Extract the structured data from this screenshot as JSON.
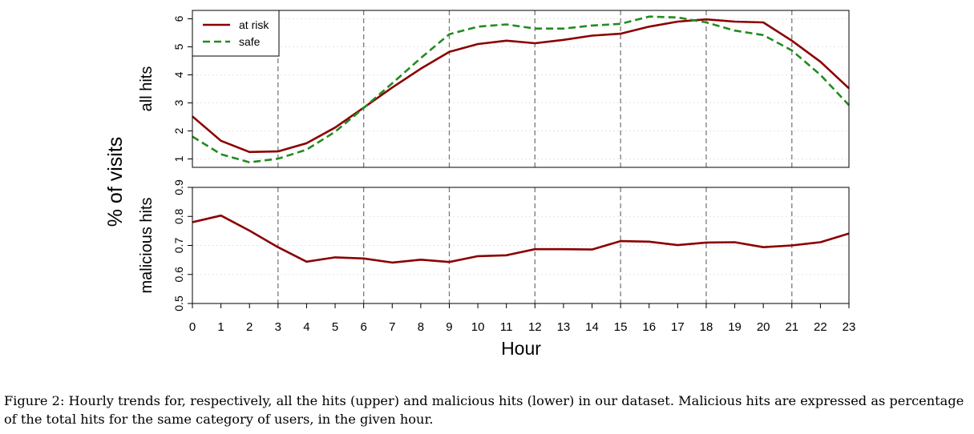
{
  "figure": {
    "ylabel_shared": "% of visits",
    "xlabel": "Hour",
    "caption": "Figure 2: Hourly trends for, respectively, all the hits (upper) and malicious hits (lower) in our dataset. Malicious hits are expressed as percentage of the total hits for the same category of users, in the given hour."
  },
  "colors": {
    "at_risk": "#8b0000",
    "safe": "#228b22"
  },
  "chart_data": [
    {
      "type": "line",
      "xlabel": "Hour",
      "ylabel": "all hits",
      "x": [
        0,
        1,
        2,
        3,
        4,
        5,
        6,
        7,
        8,
        9,
        10,
        11,
        12,
        13,
        14,
        15,
        16,
        17,
        18,
        19,
        20,
        21,
        22,
        23
      ],
      "xlim": [
        0,
        23
      ],
      "ylim": [
        0.7,
        6.3
      ],
      "yticks": [
        1,
        2,
        3,
        4,
        5,
        6
      ],
      "vlines": [
        3,
        6,
        9,
        12,
        15,
        18,
        21
      ],
      "legend_position": "top-left",
      "series": [
        {
          "name": "at risk",
          "style": "solid",
          "values": [
            2.52,
            1.65,
            1.25,
            1.27,
            1.56,
            2.12,
            2.83,
            3.55,
            4.22,
            4.82,
            5.1,
            5.22,
            5.13,
            5.25,
            5.4,
            5.47,
            5.72,
            5.9,
            5.98,
            5.9,
            5.87,
            5.22,
            4.47,
            3.52
          ]
        },
        {
          "name": "safe",
          "style": "dashed",
          "values": [
            1.8,
            1.17,
            0.88,
            1.01,
            1.33,
            1.97,
            2.82,
            3.7,
            4.6,
            5.45,
            5.72,
            5.8,
            5.65,
            5.65,
            5.76,
            5.82,
            6.08,
            6.05,
            5.87,
            5.58,
            5.42,
            4.87,
            4.0,
            2.92
          ]
        }
      ]
    },
    {
      "type": "line",
      "xlabel": "Hour",
      "ylabel": "malicious hits",
      "x": [
        0,
        1,
        2,
        3,
        4,
        5,
        6,
        7,
        8,
        9,
        10,
        11,
        12,
        13,
        14,
        15,
        16,
        17,
        18,
        19,
        20,
        21,
        22,
        23
      ],
      "xlim": [
        0,
        23
      ],
      "ylim": [
        0.5,
        0.9
      ],
      "yticks": [
        0.5,
        0.6,
        0.7,
        0.8,
        0.9
      ],
      "vlines": [
        3,
        6,
        9,
        12,
        15,
        18,
        21
      ],
      "series": [
        {
          "name": "at risk",
          "style": "solid",
          "values": [
            0.78,
            0.803,
            0.751,
            0.694,
            0.644,
            0.659,
            0.655,
            0.641,
            0.651,
            0.643,
            0.663,
            0.666,
            0.687,
            0.687,
            0.686,
            0.715,
            0.713,
            0.701,
            0.71,
            0.711,
            0.694,
            0.7,
            0.711,
            0.741
          ]
        }
      ]
    }
  ]
}
